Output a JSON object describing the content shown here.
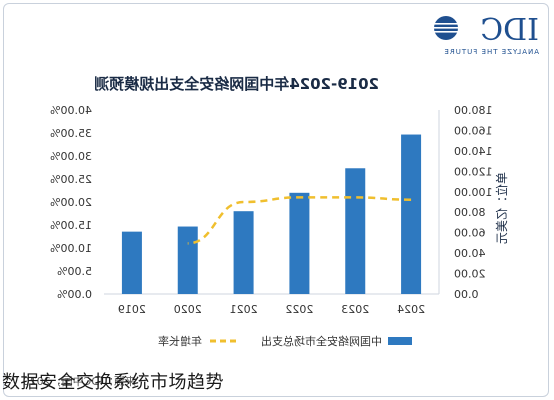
{
  "logo": {
    "brand": "IDC",
    "tagline": "ANALYZE THE FUTURE",
    "color": "#1f4f8f"
  },
  "caption": "数据安全交换系统市场趋势",
  "source": "来源：IDC中国，2020",
  "chart_data": {
    "type": "bar",
    "mirrored": true,
    "title": "2019-2024年中国网络安全支出规模预测",
    "categories": [
      "2024",
      "2023",
      "2022",
      "2021",
      "2020",
      "2019"
    ],
    "series": [
      {
        "name": "中国网络安全市场总支出",
        "type": "bar",
        "axis": "right",
        "color": "#2e79c0",
        "values": [
          156.0,
          123.0,
          99.0,
          81.0,
          66.0,
          61.0
        ]
      },
      {
        "name": "年增长率",
        "type": "line",
        "axis": "left",
        "color": "#f0bf2e",
        "dashed": true,
        "values": [
          20.5,
          21.0,
          21.0,
          20.0,
          11.0,
          null
        ]
      }
    ],
    "ylabel_right": "单位：亿美元",
    "y_right_ticks": [
      "180.00",
      "160.00",
      "140.00",
      "120.00",
      "100.00",
      "80.00",
      "60.00",
      "40.00",
      "20.00",
      "0.00"
    ],
    "y_left_ticks": [
      "40.00%",
      "35.00%",
      "30.00%",
      "25.00%",
      "20.00%",
      "15.00%",
      "10.00%",
      "5.00%",
      "0.00%"
    ],
    "y_right_lim": [
      0,
      180
    ],
    "y_left_lim": [
      0,
      40
    ],
    "legend": [
      "中国网络安全市场总支出",
      "年增长率"
    ],
    "legend_position": "bottom",
    "grid": false
  }
}
